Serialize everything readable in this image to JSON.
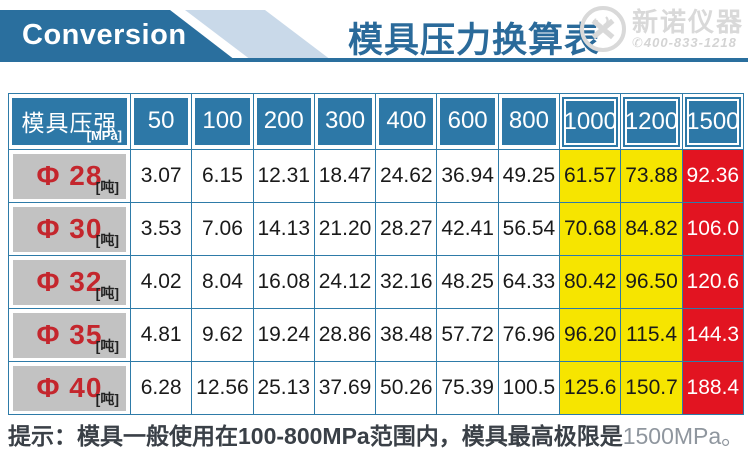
{
  "header": {
    "banner_label": "Conversion",
    "title": "模具压力换算表",
    "logo": {
      "name": "新诺仪器",
      "phone": "400-833-1218",
      "phone_icon": "✆"
    }
  },
  "table": {
    "corner": {
      "label": "模具压强",
      "unit": "[MPa]"
    },
    "columns": [
      "50",
      "100",
      "200",
      "300",
      "400",
      "600",
      "800",
      "1000",
      "1200",
      "1500"
    ],
    "yellow_col_indices": [
      7,
      8
    ],
    "red_col_indices": [
      9
    ],
    "row_unit": "[吨]",
    "rows": [
      {
        "label": "Φ 28",
        "values": [
          "3.07",
          "6.15",
          "12.31",
          "18.47",
          "24.62",
          "36.94",
          "49.25",
          "61.57",
          "73.88",
          "92.36"
        ]
      },
      {
        "label": "Φ 30",
        "values": [
          "3.53",
          "7.06",
          "14.13",
          "21.20",
          "28.27",
          "42.41",
          "56.54",
          "70.68",
          "84.82",
          "106.0"
        ]
      },
      {
        "label": "Φ 32",
        "values": [
          "4.02",
          "8.04",
          "16.08",
          "24.12",
          "32.16",
          "48.25",
          "64.33",
          "80.42",
          "96.50",
          "120.6"
        ]
      },
      {
        "label": "Φ 35",
        "values": [
          "4.81",
          "9.62",
          "19.24",
          "28.86",
          "38.48",
          "57.72",
          "76.96",
          "96.20",
          "115.4",
          "144.3"
        ]
      },
      {
        "label": "Φ 40",
        "values": [
          "6.28",
          "12.56",
          "25.13",
          "37.69",
          "50.26",
          "75.39",
          "100.5",
          "125.6",
          "150.7",
          "188.4"
        ]
      }
    ]
  },
  "note": {
    "main": "提示：模具一般使用在100-800MPa范围内，模具最高极限是",
    "suffix": "1500MPa。"
  },
  "colors": {
    "blue": "#2d78a7",
    "banner_blue": "#2a6f9e",
    "light_blue": "#c9d9e9",
    "title_blue": "#2a6a9a",
    "yellow": "#f6e500",
    "red": "#e21421",
    "label_bg_gray": "#c2c2c2",
    "label_red": "#c4262d",
    "logo_gray": "#d9d9d9"
  }
}
